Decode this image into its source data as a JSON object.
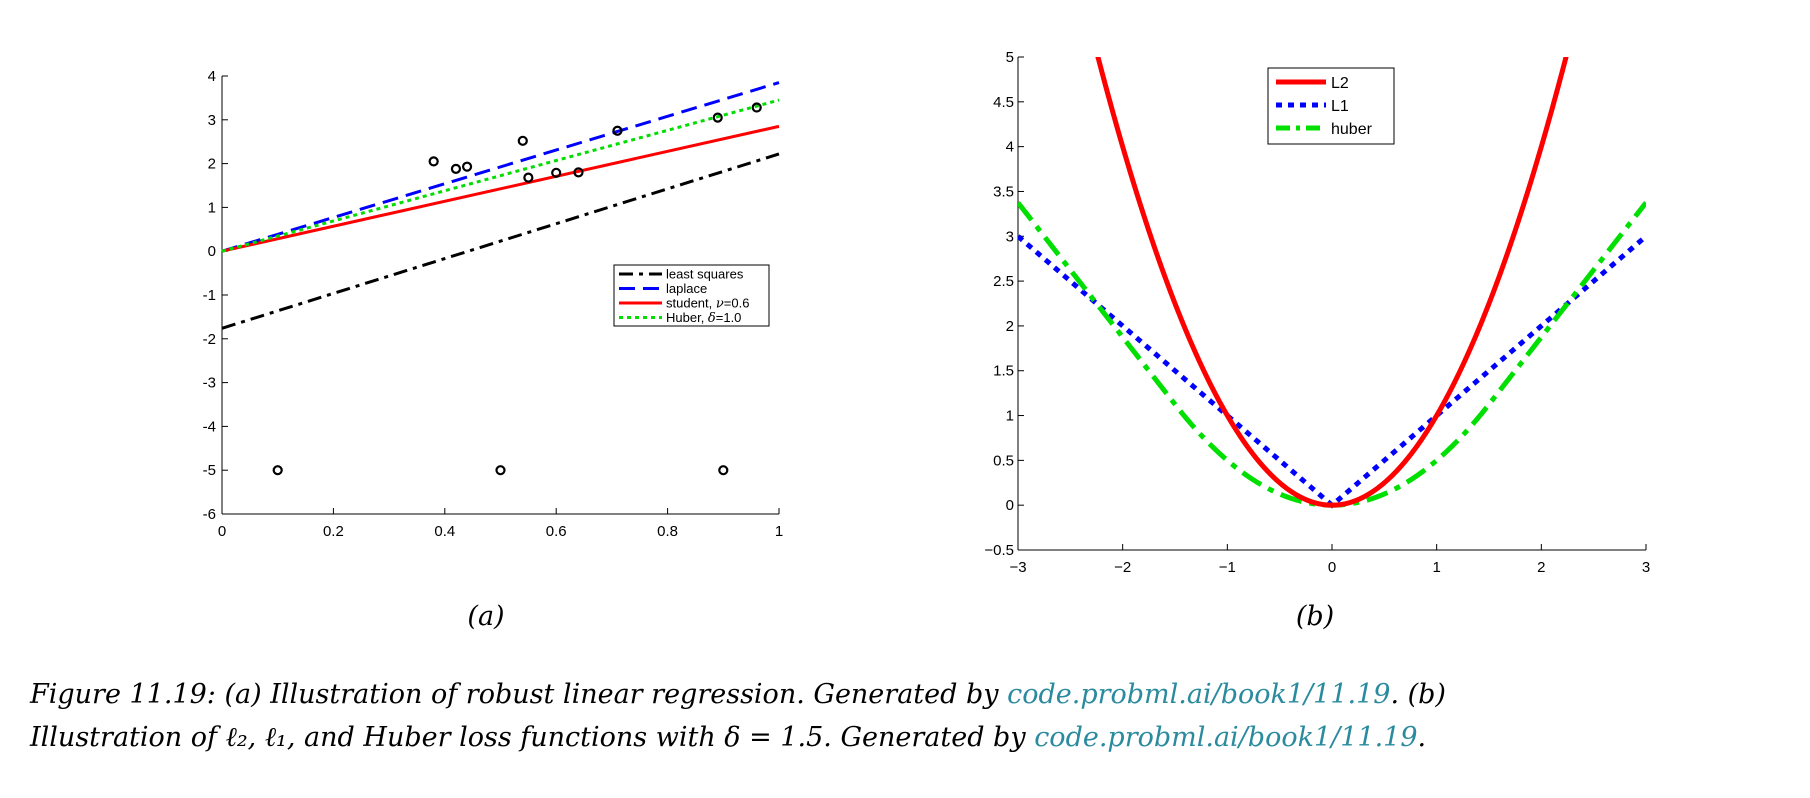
{
  "colors": {
    "link": "#2a8a9e",
    "least_squares": "#000000",
    "laplace": "#0000ff",
    "student": "#ff0000",
    "huber_a": "#00dd00",
    "L2": "#ff0000",
    "L1": "#0000ff",
    "huber_b": "#00e000"
  },
  "chart_data": [
    {
      "id": "a",
      "type": "line",
      "sublabel": "(a)",
      "xlim": [
        0,
        1
      ],
      "ylim": [
        -6,
        4
      ],
      "x_ticks": [
        0,
        0.2,
        0.4,
        0.6,
        0.8,
        1
      ],
      "x_tick_labels": [
        "0",
        "0.2",
        "0.4",
        "0.6",
        "0.8",
        "1"
      ],
      "y_ticks": [
        4,
        3,
        2,
        1,
        0,
        -1,
        -2,
        -3,
        -4,
        -5,
        -6
      ],
      "y_tick_labels": [
        "4",
        "3",
        "2",
        "1",
        "0",
        "-1",
        "-2",
        "-3",
        "-4",
        "-5",
        "-6"
      ],
      "points": {
        "x": [
          0.1,
          0.38,
          0.42,
          0.44,
          0.54,
          0.55,
          0.6,
          0.64,
          0.71,
          0.89,
          0.96,
          0.5,
          0.9
        ],
        "y": [
          -5,
          2.05,
          1.88,
          1.93,
          2.52,
          1.68,
          1.79,
          1.8,
          2.75,
          3.05,
          3.28,
          -5,
          -5
        ]
      },
      "series": [
        {
          "name": "least squares",
          "label_prefix": "least squares",
          "symbol": "",
          "label_suffix": "",
          "style": "dashdot",
          "color": "#000000",
          "intercept": -1.76,
          "slope": 3.98
        },
        {
          "name": "laplace",
          "label_prefix": "laplace",
          "symbol": "",
          "label_suffix": "",
          "style": "dashed",
          "color": "#0000ff",
          "intercept": 0,
          "slope": 3.85
        },
        {
          "name": "student, ν=0.6",
          "label_prefix": "student, ",
          "symbol": "ν",
          "label_suffix": "=0.6",
          "style": "solid",
          "color": "#ff0000",
          "intercept": 0,
          "slope": 2.85
        },
        {
          "name": "Huber, δ=1.0",
          "label_prefix": "Huber, ",
          "symbol": "δ",
          "label_suffix": "=1.0",
          "style": "dotted",
          "color": "#00dd00",
          "intercept": 0,
          "slope": 3.45
        }
      ],
      "legend": "middle-right"
    },
    {
      "id": "b",
      "type": "line",
      "sublabel": "(b)",
      "xlim": [
        -3,
        3
      ],
      "ylim": [
        -0.5,
        5
      ],
      "x_ticks": [
        -3,
        -2,
        -1,
        0,
        1,
        2,
        3
      ],
      "x_tick_labels": [
        "−3",
        "−2",
        "−1",
        "0",
        "1",
        "2",
        "3"
      ],
      "y_ticks": [
        5,
        4.5,
        4,
        3.5,
        3,
        2.5,
        2,
        1.5,
        1,
        0.5,
        0,
        -0.5
      ],
      "y_tick_labels": [
        "5",
        "4.5",
        "4",
        "3.5",
        "3",
        "2.5",
        "2",
        "1.5",
        "1",
        "0.5",
        "0",
        "−0.5"
      ],
      "series": [
        {
          "name": "L2",
          "style": "solid",
          "color": "#ff0000",
          "function": "r^2"
        },
        {
          "name": "L1",
          "style": "dotted",
          "color": "#0000ff",
          "function": "|r|"
        },
        {
          "name": "huber",
          "style": "dashdot",
          "color": "#00e000",
          "function": "huber",
          "delta": 1.5
        }
      ],
      "legend": "top-center"
    }
  ],
  "caption": {
    "line1_text": "Figure 11.19: (a) Illustration of robust linear regression. Generated by ",
    "line1_link": "code.probml.ai/book1/11.19",
    "line1_tail": ". (b)",
    "line2_text": "Illustration of ℓ₂, ℓ₁, and Huber loss functions with δ = 1.5. Generated by ",
    "line2_link": "code.probml.ai/book1/11.19",
    "line2_tail": "."
  }
}
